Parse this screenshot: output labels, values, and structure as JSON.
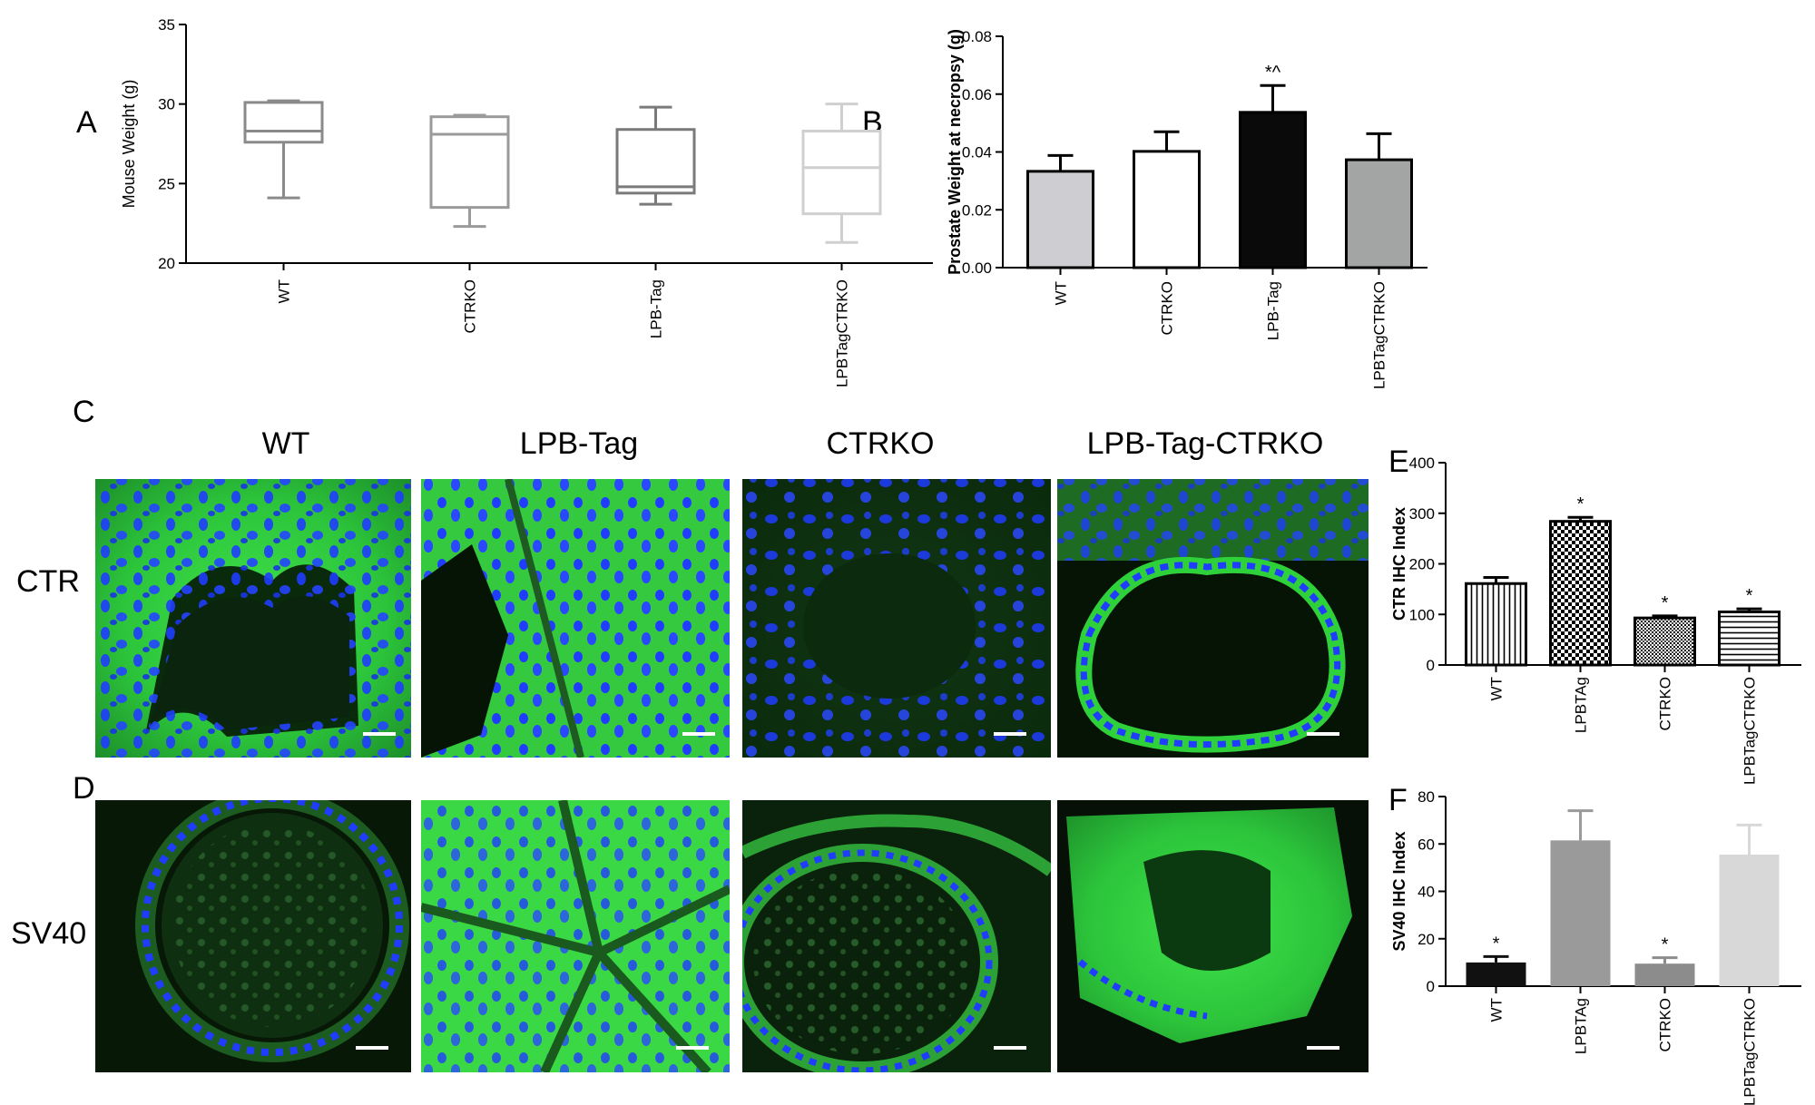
{
  "panel_labels": {
    "A": "A",
    "B": "B",
    "C": "C",
    "D": "D",
    "E": "E",
    "F": "F"
  },
  "micrograph_columns": [
    "WT",
    "LPB-Tag",
    "CTRKO",
    "LPB-Tag-CTRKO"
  ],
  "micrograph_rows": [
    "CTR",
    "SV40"
  ],
  "micrograph_colors": {
    "nuclei": "#1f3cff",
    "stain": "#33e03a",
    "background": "#061406"
  },
  "chart_data": [
    {
      "id": "A",
      "type": "box",
      "ylabel": "Mouse Weight (g)",
      "ylim": [
        20,
        35
      ],
      "yticks": [
        "20",
        "25",
        "30",
        "35"
      ],
      "categories": [
        "WT",
        "CTRKO",
        "LPB-Tag",
        "LPBTagCTRKO"
      ],
      "boxes": [
        {
          "min": 24.1,
          "q1": 27.6,
          "median": 28.3,
          "q3": 30.1,
          "max": 30.2,
          "color": "#8a8a8a"
        },
        {
          "min": 22.3,
          "q1": 23.5,
          "median": 28.1,
          "q3": 29.2,
          "max": 29.3,
          "color": "#9a9a9a"
        },
        {
          "min": 23.7,
          "q1": 24.4,
          "median": 24.8,
          "q3": 28.4,
          "max": 29.8,
          "color": "#7a7a7a"
        },
        {
          "min": 21.3,
          "q1": 23.1,
          "median": 26.0,
          "q3": 28.3,
          "max": 30.0,
          "color": "#cfcfcf"
        }
      ]
    },
    {
      "id": "B",
      "type": "bar",
      "ylabel": "Prostate Weight at necropsy (g)",
      "ylim": [
        0,
        0.08
      ],
      "yticks": [
        "0.00",
        "0.02",
        "0.04",
        "0.06",
        "0.08"
      ],
      "categories": [
        "WT",
        "CTRKO",
        "LPB-Tag",
        "LPBTagCTRKO"
      ],
      "values": [
        0.0333,
        0.0402,
        0.0537,
        0.0373
      ],
      "errors": [
        0.0055,
        0.0068,
        0.0093,
        0.009
      ],
      "colors": [
        "#cdcdd2",
        "#ffffff",
        "#0a0a0a",
        "#a3a5a4"
      ],
      "annotations": [
        "",
        "",
        "*^",
        ""
      ]
    },
    {
      "id": "E",
      "type": "bar",
      "ylabel": "CTR IHC Index",
      "ylim": [
        0,
        400
      ],
      "yticks": [
        "0",
        "100",
        "200",
        "300",
        "400"
      ],
      "categories": [
        "WT",
        "LPBTAg",
        "CTRKO",
        "LPBTagCTRKO"
      ],
      "values": [
        161,
        284,
        93,
        105
      ],
      "errors": [
        12,
        8,
        4,
        6
      ],
      "patterns": [
        "vertical",
        "checker",
        "dots",
        "horizontal"
      ],
      "annotations": [
        "",
        "*",
        "*",
        "*"
      ]
    },
    {
      "id": "F",
      "type": "bar",
      "ylabel": "SV40 IHC Index",
      "ylim": [
        0,
        80
      ],
      "yticks": [
        "0",
        "20",
        "40",
        "60",
        "80"
      ],
      "categories": [
        "WT",
        "LPBTAg",
        "CTRKO",
        "LPBTagCTRKO"
      ],
      "values": [
        10,
        61.5,
        9.5,
        55.5
      ],
      "errors": [
        2.5,
        12.5,
        2.5,
        12.5
      ],
      "colors": [
        "#111111",
        "#9a9a9a",
        "#8c8c8c",
        "#d8d8d8"
      ],
      "annotations": [
        "*",
        "",
        "*",
        ""
      ]
    }
  ]
}
